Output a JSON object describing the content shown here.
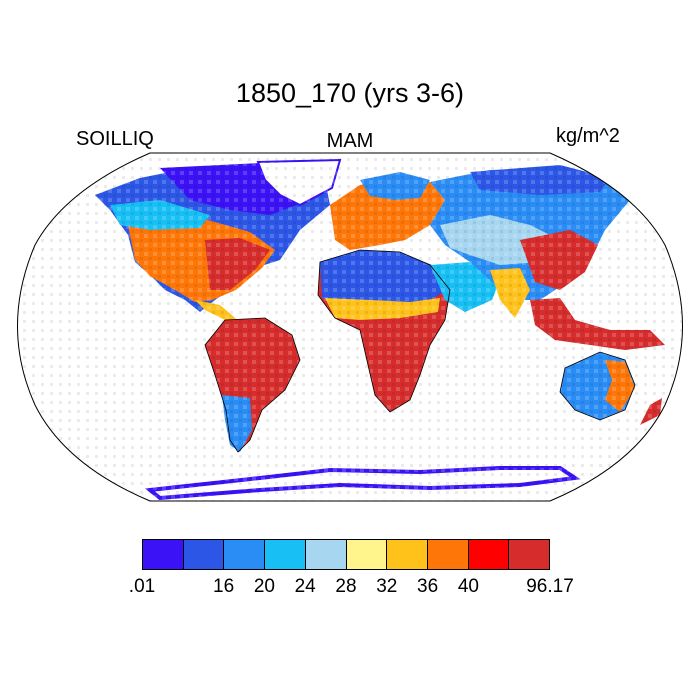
{
  "title": "1850_170 (yrs 3-6)",
  "left_label": "SOILLIQ",
  "center_label": "MAM",
  "right_label": "kg/m^2",
  "colorbar": {
    "colors": [
      "#3a12f5",
      "#2c57e6",
      "#2a8cf5",
      "#17bff5",
      "#a6d6f0",
      "#fff58c",
      "#ffc21a",
      "#ff7608",
      "#ff0000",
      "#d62c2c"
    ],
    "ticks": [
      {
        "label": ".01",
        "boundary": 0
      },
      {
        "label": "16",
        "boundary": 2
      },
      {
        "label": "20",
        "boundary": 3
      },
      {
        "label": "24",
        "boundary": 4
      },
      {
        "label": "28",
        "boundary": 5
      },
      {
        "label": "32",
        "boundary": 6
      },
      {
        "label": "36",
        "boundary": 7
      },
      {
        "label": "40",
        "boundary": 8
      },
      {
        "label": "96.17",
        "boundary": 10
      }
    ]
  }
}
